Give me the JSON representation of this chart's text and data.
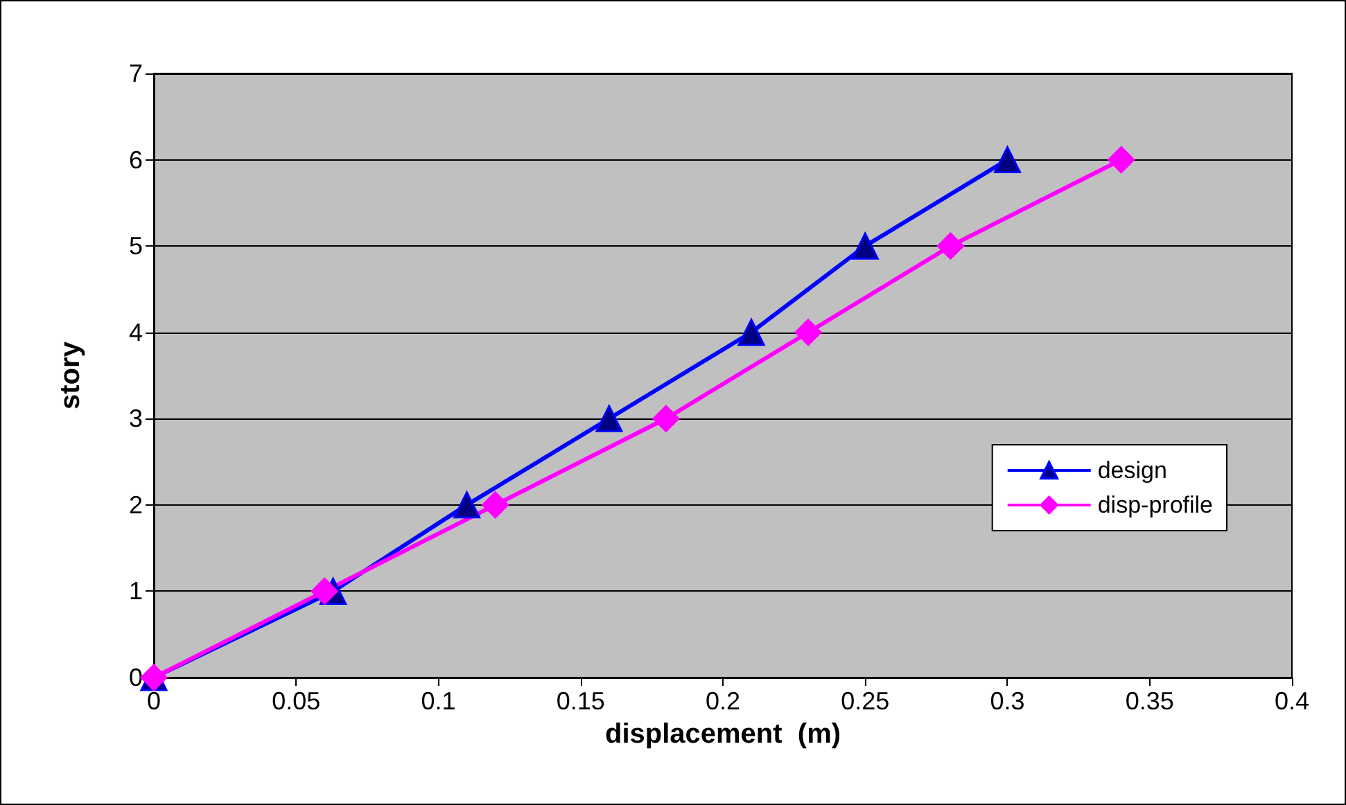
{
  "chart_data": {
    "type": "line",
    "xlabel": "displacement  (m)",
    "ylabel": "story",
    "series": [
      {
        "name": "design",
        "color": "#0000ff",
        "marker": "triangle",
        "x": [
          0,
          0.063,
          0.11,
          0.16,
          0.21,
          0.25,
          0.3
        ],
        "values": [
          0,
          1,
          2,
          3,
          4,
          5,
          6
        ]
      },
      {
        "name": "disp-profile",
        "color": "#ff00ff",
        "marker": "diamond",
        "x": [
          0,
          0.06,
          0.12,
          0.18,
          0.23,
          0.28,
          0.34
        ],
        "values": [
          0,
          1,
          2,
          3,
          4,
          5,
          6
        ]
      }
    ],
    "xlim": [
      0,
      0.4
    ],
    "xticks": [
      0,
      0.05,
      0.1,
      0.15,
      0.2,
      0.25,
      0.3,
      0.35,
      0.4
    ],
    "ylim": [
      0,
      7
    ],
    "yticks": [
      0,
      1,
      2,
      3,
      4,
      5,
      6,
      7
    ],
    "grid": "y",
    "legend": "right",
    "line_style": "solid"
  }
}
